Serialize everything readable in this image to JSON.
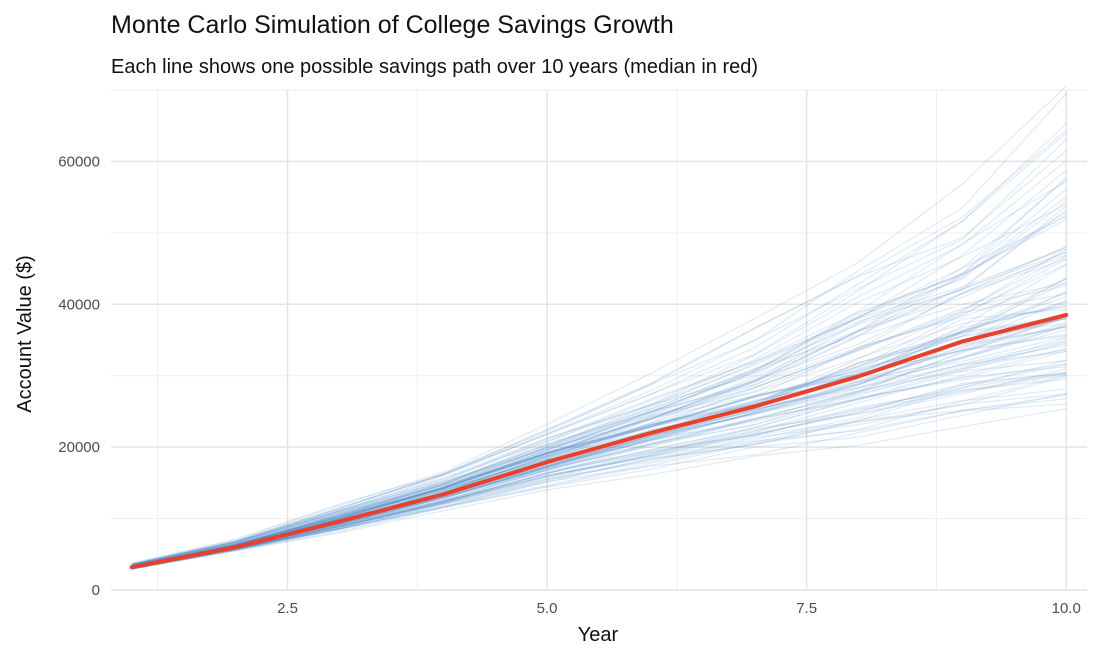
{
  "chart_data": {
    "type": "line",
    "title": "Monte Carlo Simulation of College Savings Growth",
    "subtitle": "Each line shows one possible savings path over 10 years (median in red)",
    "xlabel": "Year",
    "ylabel": "Account Value ($)",
    "xlim": [
      0.8,
      10.2
    ],
    "ylim": [
      0,
      70000
    ],
    "x_ticks": [
      2.5,
      5.0,
      7.5,
      10.0
    ],
    "x_tick_labels": [
      "2.5",
      "5.0",
      "7.5",
      "10.0"
    ],
    "y_ticks": [
      0,
      20000,
      40000,
      60000
    ],
    "y_tick_labels": [
      "0",
      "20000",
      "40000",
      "60000"
    ],
    "grid": true,
    "x": [
      1,
      2,
      3,
      4,
      5,
      6,
      7,
      8,
      9,
      10
    ],
    "simulation_color": "#4a86c5",
    "median_color": "#e8402a",
    "simulation_paths_count": 100,
    "simulation_envelope": {
      "low": [
        2800,
        5400,
        7800,
        10800,
        13600,
        15800,
        17800,
        19600,
        21500,
        23500
      ],
      "high": [
        3900,
        7300,
        12600,
        17500,
        24000,
        30500,
        38000,
        48000,
        57000,
        74000
      ]
    },
    "median": {
      "name": "median",
      "values": [
        3200,
        6000,
        9600,
        13400,
        17900,
        22000,
        25700,
        29900,
        34800,
        38500
      ]
    }
  }
}
